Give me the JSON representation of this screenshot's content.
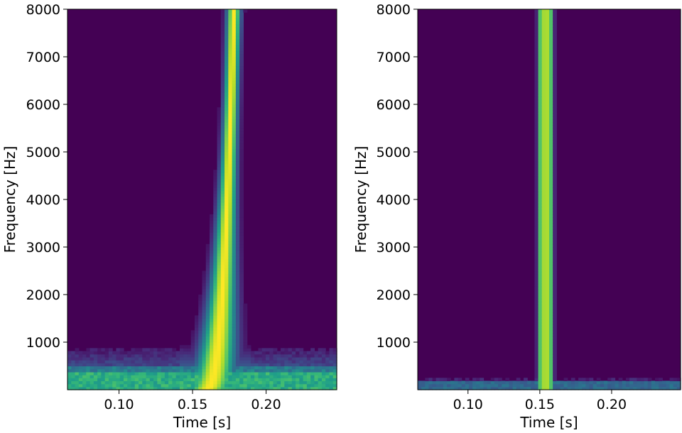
{
  "chart_data": [
    {
      "type": "heatmap",
      "xlabel": "Time [s]",
      "ylabel": "Frequency [Hz]",
      "xlim": [
        0.065,
        0.248
      ],
      "ylim": [
        0,
        8000
      ],
      "xticks": [
        0.1,
        0.15,
        0.2
      ],
      "xtick_labels": [
        "0.10",
        "0.15",
        "0.20"
      ],
      "yticks": [
        1000,
        2000,
        3000,
        4000,
        5000,
        6000,
        7000,
        8000
      ],
      "ytick_labels": [
        "1000",
        "2000",
        "3000",
        "4000",
        "5000",
        "6000",
        "7000",
        "8000"
      ],
      "colormap": "viridis",
      "features": {
        "chirp_ridge": {
          "time_low_freq": 0.158,
          "time_high_freq": 0.178,
          "freq_range": [
            0,
            8000
          ]
        },
        "low_freq_band": {
          "freq_range": [
            0,
            900
          ],
          "strong_freq_range": [
            0,
            400
          ]
        }
      }
    },
    {
      "type": "heatmap",
      "xlabel": "Time [s]",
      "ylabel": "Frequency [Hz]",
      "xlim": [
        0.065,
        0.248
      ],
      "ylim": [
        0,
        8000
      ],
      "xticks": [
        0.1,
        0.15,
        0.2
      ],
      "xtick_labels": [
        "0.10",
        "0.15",
        "0.20"
      ],
      "yticks": [
        1000,
        2000,
        3000,
        4000,
        5000,
        6000,
        7000,
        8000
      ],
      "ytick_labels": [
        "1000",
        "2000",
        "3000",
        "4000",
        "5000",
        "6000",
        "7000",
        "8000"
      ],
      "colormap": "viridis",
      "features": {
        "vertical_line": {
          "time": 0.154,
          "freq_range": [
            0,
            8000
          ]
        },
        "low_freq_band": {
          "freq_range": [
            0,
            200
          ]
        }
      }
    }
  ],
  "colors": {
    "background": "#440154",
    "low": "#3b528b",
    "mid": "#21918c",
    "high_mid": "#5ec962",
    "peak": "#fde725"
  }
}
